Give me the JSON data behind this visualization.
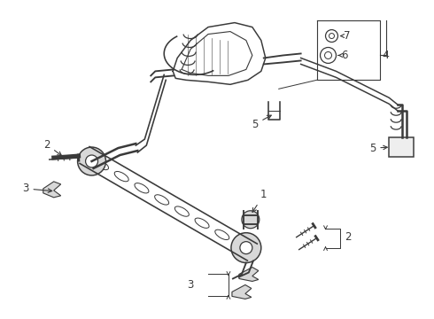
{
  "bg_color": "#ffffff",
  "line_color": "#3a3a3a",
  "fig_width": 4.9,
  "fig_height": 3.6,
  "dpi": 100,
  "label_fs": 8.5,
  "lw": 0.9
}
